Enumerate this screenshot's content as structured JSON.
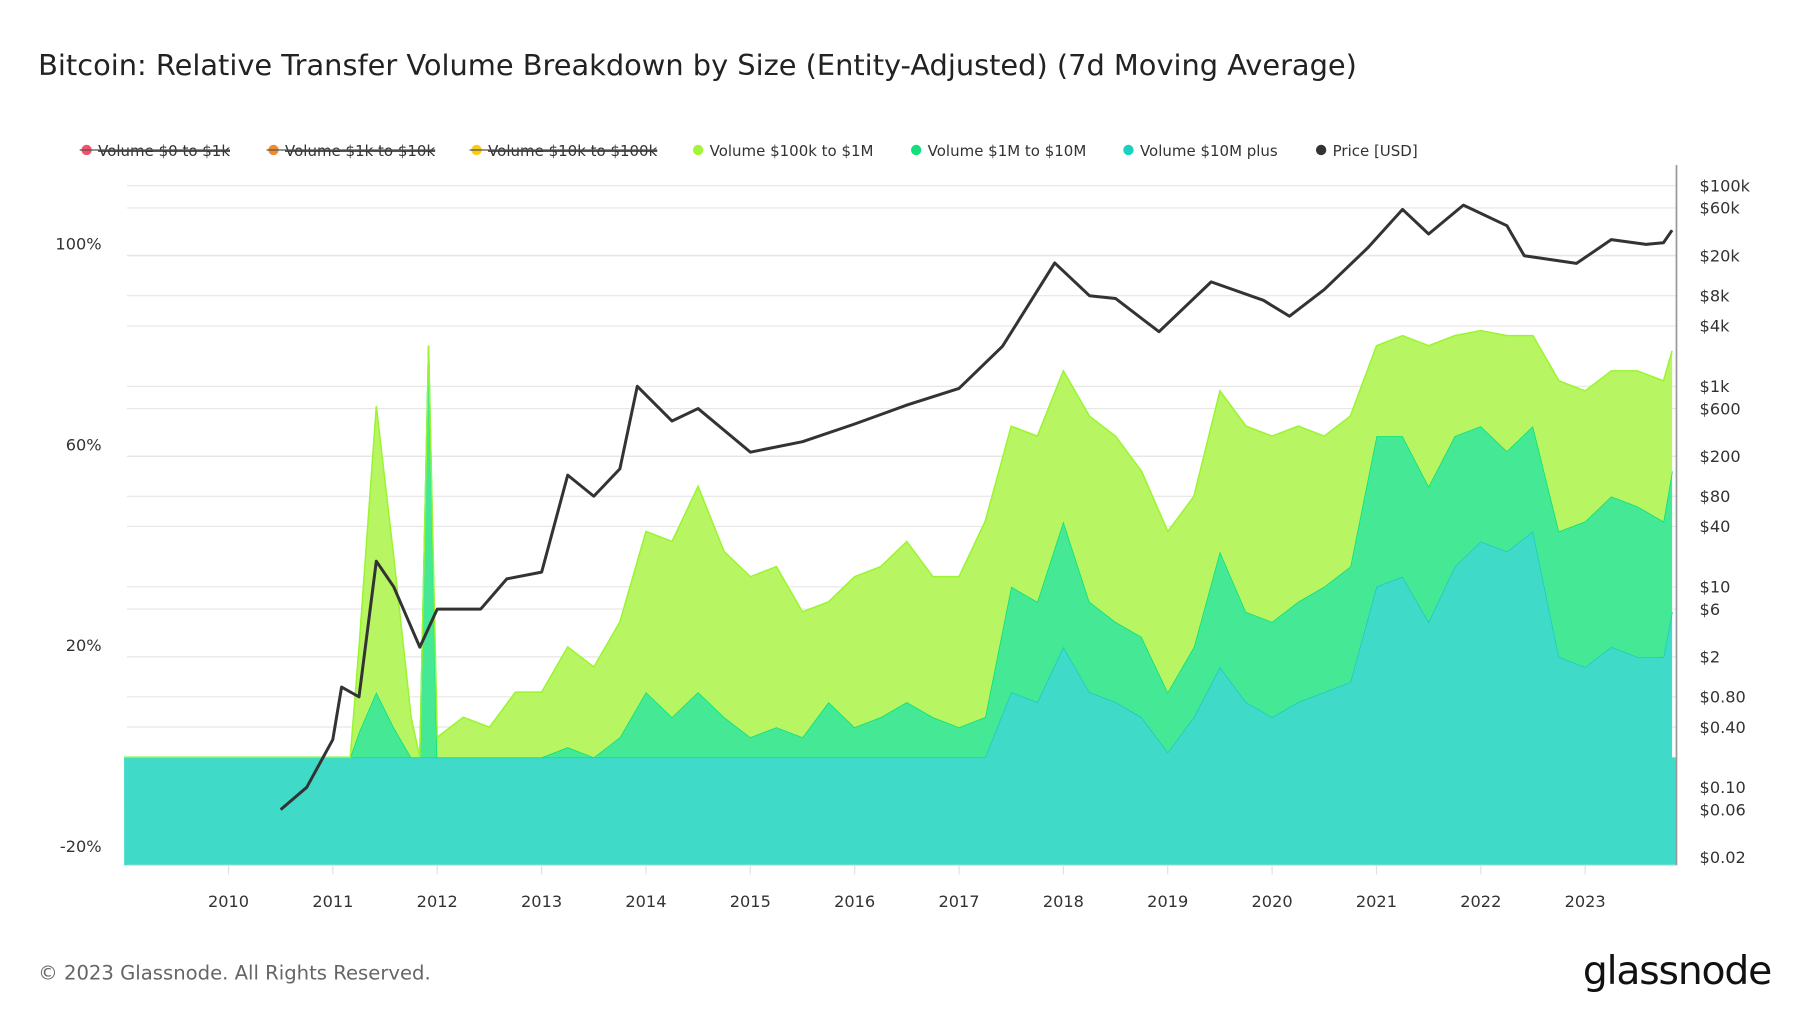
{
  "title": "Bitcoin: Relative Transfer Volume Breakdown by Size (Entity-Adjusted) (7d Moving Average)",
  "footer": {
    "copyright": "© 2023 Glassnode. All Rights Reserved.",
    "logo": "glassnode"
  },
  "legend": [
    {
      "label": "Volume $0 to $1k",
      "color": "#f5506a",
      "disabled": true
    },
    {
      "label": "Volume $1k to $10k",
      "color": "#f08c2a",
      "disabled": true
    },
    {
      "label": "Volume $10k to $100k",
      "color": "#f7cc12",
      "disabled": true
    },
    {
      "label": "Volume $100k to $1M",
      "color": "#a3f53a",
      "disabled": false
    },
    {
      "label": "Volume $1M to $10M",
      "color": "#12e07a",
      "disabled": false
    },
    {
      "label": "Volume $10M plus",
      "color": "#16d2bf",
      "disabled": false
    },
    {
      "label": "Price [USD]",
      "color": "#333333",
      "disabled": false
    }
  ],
  "chart_data": {
    "type": "area",
    "stacked": true,
    "title": "Bitcoin: Relative Transfer Volume Breakdown by Size (Entity-Adjusted) (7d Moving Average)",
    "x_ticks": [
      "2010",
      "2011",
      "2012",
      "2013",
      "2014",
      "2015",
      "2016",
      "2017",
      "2018",
      "2019",
      "2020",
      "2021",
      "2022",
      "2023"
    ],
    "y_left": {
      "ticks": [
        "100%",
        "60%",
        "20%",
        "-20%"
      ],
      "tick_values": [
        100,
        60,
        20,
        -20
      ],
      "ylim": [
        -21.5,
        118
      ]
    },
    "y_right": {
      "scale": "log",
      "ticks": [
        "$100k",
        "$60k",
        "$20k",
        "$8k",
        "$4k",
        "$1k",
        "$600",
        "$200",
        "$80",
        "$40",
        "$10",
        "$6",
        "$2",
        "$0.80",
        "$0.40",
        "$0.10",
        "$0.06",
        "$0.02"
      ],
      "tick_values": [
        100000,
        60000,
        20000,
        8000,
        4000,
        1000,
        600,
        200,
        80,
        40,
        10,
        6,
        2,
        0.8,
        0.4,
        0.1,
        0.06,
        0.02
      ],
      "ylim": [
        0.0167,
        161000
      ]
    },
    "xlim": [
      "2009-01",
      "2023-11"
    ],
    "grid": true,
    "legend_position": "top",
    "x": [
      "2009-01",
      "2011-03",
      "2011-04",
      "2011-06",
      "2011-08",
      "2011-10",
      "2011-11",
      "2011-12",
      "2012-01",
      "2012-04",
      "2012-07",
      "2012-10",
      "2013-01",
      "2013-04",
      "2013-07",
      "2013-10",
      "2014-01",
      "2014-04",
      "2014-07",
      "2014-10",
      "2015-01",
      "2015-04",
      "2015-07",
      "2015-10",
      "2016-01",
      "2016-04",
      "2016-07",
      "2016-10",
      "2017-01",
      "2017-04",
      "2017-07",
      "2017-10",
      "2018-01",
      "2018-04",
      "2018-07",
      "2018-10",
      "2019-01",
      "2019-04",
      "2019-07",
      "2019-10",
      "2020-01",
      "2020-04",
      "2020-07",
      "2020-10",
      "2021-01",
      "2021-04",
      "2021-07",
      "2021-10",
      "2022-01",
      "2022-04",
      "2022-07",
      "2022-10",
      "2023-01",
      "2023-04",
      "2023-07",
      "2023-10",
      "2023-11"
    ],
    "series": [
      {
        "name": "Volume $10M plus",
        "color": "#40dbc8",
        "line": "#16ccc0",
        "values": [
          0,
          0,
          0,
          0,
          0,
          0,
          0,
          0,
          0,
          0,
          0,
          0,
          0,
          0,
          0,
          0,
          0,
          0,
          0,
          0,
          0,
          0,
          0,
          0,
          0,
          0,
          0,
          0,
          0,
          0,
          13,
          11,
          22,
          13,
          11,
          8,
          1,
          8,
          18,
          11,
          8,
          11,
          13,
          15,
          34,
          36,
          27,
          38,
          43,
          41,
          45,
          20,
          18,
          22,
          20,
          20,
          29
        ]
      },
      {
        "name": "Volume $1M to $10M",
        "color": "#45e895",
        "line": "#00e27a",
        "values": [
          0,
          0,
          5,
          13,
          6,
          0,
          0,
          82,
          0,
          0,
          0,
          0,
          0,
          2,
          0,
          4,
          13,
          8,
          13,
          8,
          4,
          6,
          4,
          11,
          6,
          8,
          11,
          8,
          6,
          8,
          21,
          20,
          25,
          18,
          16,
          16,
          12,
          14,
          23,
          18,
          19,
          20,
          21,
          23,
          30,
          28,
          27,
          26,
          23,
          20,
          21,
          25,
          29,
          30,
          30,
          27,
          28
        ]
      },
      {
        "name": "Volume $100k to $1M",
        "color": "#b8f562",
        "line": "#9af530",
        "values": [
          0,
          0,
          17,
          57,
          34,
          8,
          0,
          0,
          4,
          8,
          6,
          13,
          13,
          20,
          18,
          23,
          32,
          35,
          41,
          33,
          32,
          32,
          25,
          20,
          30,
          30,
          32,
          28,
          30,
          39,
          32,
          33,
          30,
          37,
          37,
          33,
          32,
          30,
          32,
          37,
          37,
          35,
          30,
          30,
          18,
          20,
          28,
          20,
          19,
          23,
          18,
          30,
          26,
          25,
          27,
          28,
          24
        ]
      }
    ],
    "price": {
      "name": "Price [USD]",
      "color": "#333333",
      "axis": "right",
      "x": [
        "2010-07",
        "2010-10",
        "2011-01",
        "2011-02",
        "2011-04",
        "2011-06",
        "2011-08",
        "2011-11",
        "2012-01",
        "2012-06",
        "2012-09",
        "2013-01",
        "2013-04",
        "2013-07",
        "2013-10",
        "2013-12",
        "2014-04",
        "2014-07",
        "2015-01",
        "2015-07",
        "2016-01",
        "2016-07",
        "2017-01",
        "2017-06",
        "2017-12",
        "2018-04",
        "2018-07",
        "2018-12",
        "2019-06",
        "2019-12",
        "2020-03",
        "2020-07",
        "2020-12",
        "2021-04",
        "2021-07",
        "2021-11",
        "2022-04",
        "2022-06",
        "2022-12",
        "2023-04",
        "2023-08",
        "2023-10",
        "2023-11"
      ],
      "values": [
        0.06,
        0.1,
        0.3,
        1,
        0.8,
        18,
        10,
        2.5,
        6,
        6,
        12,
        14,
        130,
        80,
        150,
        1000,
        450,
        600,
        220,
        280,
        420,
        650,
        950,
        2500,
        17000,
        8000,
        7500,
        3500,
        11000,
        7200,
        5000,
        9200,
        24000,
        58000,
        33000,
        64000,
        40000,
        20000,
        16800,
        29000,
        26000,
        27000,
        36000
      ]
    }
  }
}
